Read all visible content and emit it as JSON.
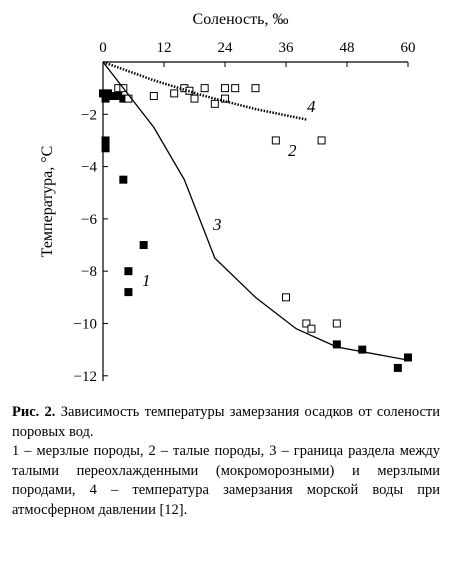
{
  "chart_data": {
    "type": "scatter",
    "x_label": "Соленость, ‰",
    "y_label": "Температура, °С",
    "xlim": [
      0,
      60
    ],
    "xticks": [
      0,
      12,
      24,
      36,
      48,
      60
    ],
    "ylim": [
      -12.2,
      0
    ],
    "yticks": [
      {
        "value": -2,
        "label": "−2"
      },
      {
        "value": -4,
        "label": "−4"
      },
      {
        "value": -6,
        "label": "−6"
      },
      {
        "value": -8,
        "label": "−8"
      },
      {
        "value": -10,
        "label": "−10"
      },
      {
        "value": -12,
        "label": "−12"
      }
    ],
    "series": [
      {
        "label": "1",
        "style": "filled-square",
        "color": "#000000",
        "x": [
          0,
          0.5,
          1,
          1.5,
          3,
          4,
          0.5,
          0.5,
          4,
          8,
          5,
          5,
          46,
          51,
          58,
          60
        ],
        "y": [
          -1.2,
          -1.4,
          -1.2,
          -1.3,
          -1.3,
          -1.4,
          -3,
          -3.3,
          -4.5,
          -7,
          -8,
          -8.8,
          -10.8,
          -11,
          -11.7,
          -11.3
        ]
      },
      {
        "label": "2",
        "style": "open-square",
        "color": "#000000",
        "x": [
          3,
          4,
          5,
          10,
          14,
          16,
          17,
          18,
          20,
          22,
          24,
          24,
          26,
          30,
          34,
          43,
          36,
          40,
          41,
          46
        ],
        "y": [
          -1,
          -1,
          -1.4,
          -1.3,
          -1.2,
          -1,
          -1.1,
          -1.4,
          -1,
          -1.6,
          -1,
          -1.4,
          -1,
          -1,
          -3,
          -3,
          -9,
          -10,
          -10.2,
          -10
        ]
      },
      {
        "label": "3",
        "style": "line",
        "color": "#000000",
        "x": [
          0,
          4,
          10,
          16,
          22,
          30,
          38,
          46,
          60
        ],
        "y": [
          0,
          -1,
          -2.5,
          -4.5,
          -7.5,
          -9,
          -10.2,
          -10.9,
          -11.4
        ]
      },
      {
        "label": "4",
        "style": "dotted-line",
        "color": "#000000",
        "x": [
          0,
          10,
          20,
          30,
          40
        ],
        "y": [
          0,
          -0.7,
          -1.3,
          -1.8,
          -2.2
        ]
      }
    ]
  },
  "caption": {
    "figure": "Рис. 2.",
    "title": "Зависимость температуры замерзания осадков от солености поровых вод.",
    "legend": "1 – мерзлые породы, 2 – талые породы, 3 – граница раздела между талыми переохлажденными (мокроморозными) и мерзлыми породами, 4 – температура замерзания морской воды при атмосферном давлении [12]."
  }
}
